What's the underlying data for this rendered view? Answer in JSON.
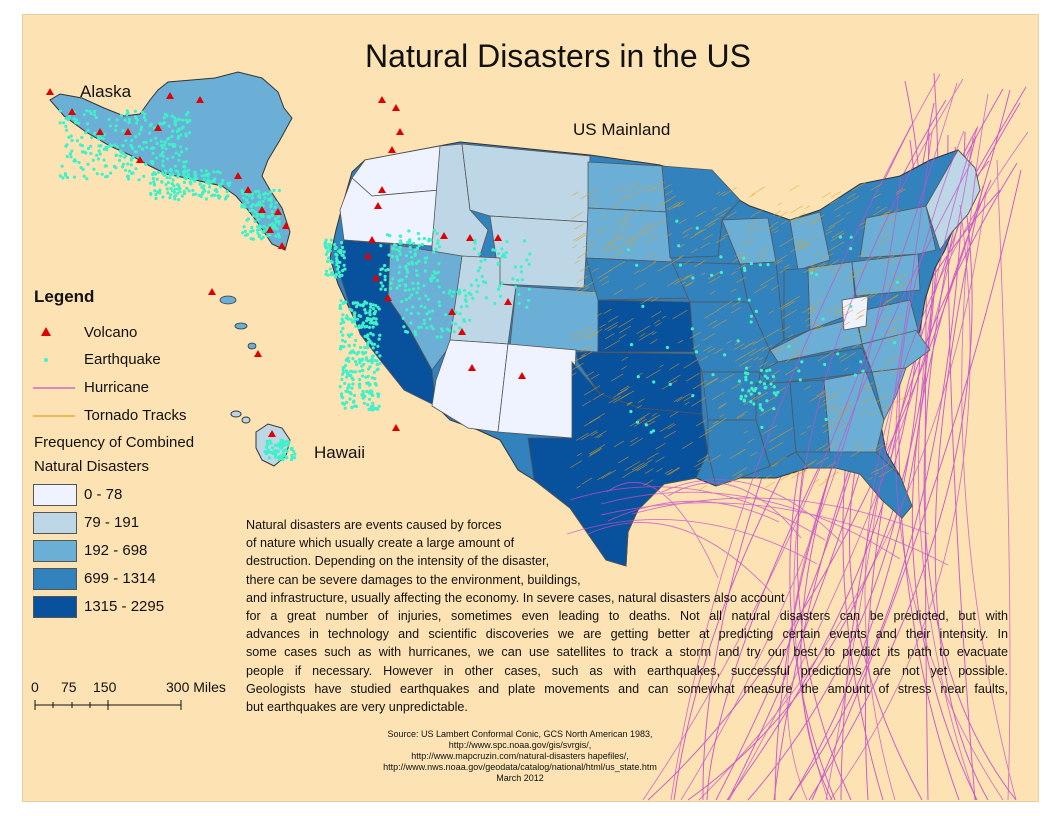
{
  "title": "Natural Disasters in the US",
  "labels": {
    "alaska": "Alaska",
    "hawaii": "Hawaii",
    "mainland": "US Mainland"
  },
  "legend": {
    "title": "Legend",
    "items": [
      {
        "label": "Volcano",
        "symbol": "red-triangle",
        "color": "#e00000"
      },
      {
        "label": "Earthquake",
        "symbol": "cyan-dot",
        "color": "#40f0c8"
      },
      {
        "label": "Hurricane",
        "symbol": "magenta-line",
        "color": "#c850c8"
      },
      {
        "label": "Tornado Tracks",
        "symbol": "orange-line",
        "color": "#e0a020"
      }
    ],
    "frequency_title_1": "Frequency of Combined",
    "frequency_title_2": "Natural Disasters",
    "classes": [
      {
        "label": "0 - 78",
        "color": "#eff3ff"
      },
      {
        "label": "79 - 191",
        "color": "#bdd7e7"
      },
      {
        "label": "192 - 698",
        "color": "#6baed6"
      },
      {
        "label": "699 - 1314",
        "color": "#3182bd"
      },
      {
        "label": "1315 - 2295",
        "color": "#08519c"
      }
    ]
  },
  "scale_bar": {
    "labels": [
      "0",
      "75",
      "150",
      "300 Miles"
    ]
  },
  "description": [
    "Natural disasters are events caused by forces",
    "of nature which usually create a large amount of",
    "destruction. Depending on the intensity of the disaster,",
    "there can be severe damages to the environment, buildings,",
    "and infrastructure, usually affecting the economy. In severe cases, natural disasters also account",
    "for a great number of injuries, sometimes even leading to deaths. Not all natural disasters can be predicted, but with",
    "advances in technology and scientific discoveries we are getting better at predicting certain events and their intensity. In",
    "some cases such as with hurricanes, we can use satellites to track a storm and try our best to predict its path to evacuate",
    "people if necessary. However in other cases, such as with earthquakes, successful predictions are not yet possible.",
    "Geologists have studied earthquakes and plate movements and can somewhat measure the amount of stress near faults,",
    "but earthquakes are very unpredictable."
  ],
  "source": [
    "Source: US Lambert Conformal Conic, GCS North American 1983,",
    "http://www.spc.noaa.gov/gis/svrgis/,",
    "http://www.mapcruzin.com/natural-disasters hapefiles/,",
    "http://www.nws.noaa.gov/geodata/catalog/national/html/us_state.htm",
    "March 2012"
  ],
  "colors": {
    "background": "#fde3b4",
    "volcano": "#e00000",
    "earthquake": "#40f0c8",
    "hurricane": "#c850c8",
    "tornado": "#e0a020"
  }
}
